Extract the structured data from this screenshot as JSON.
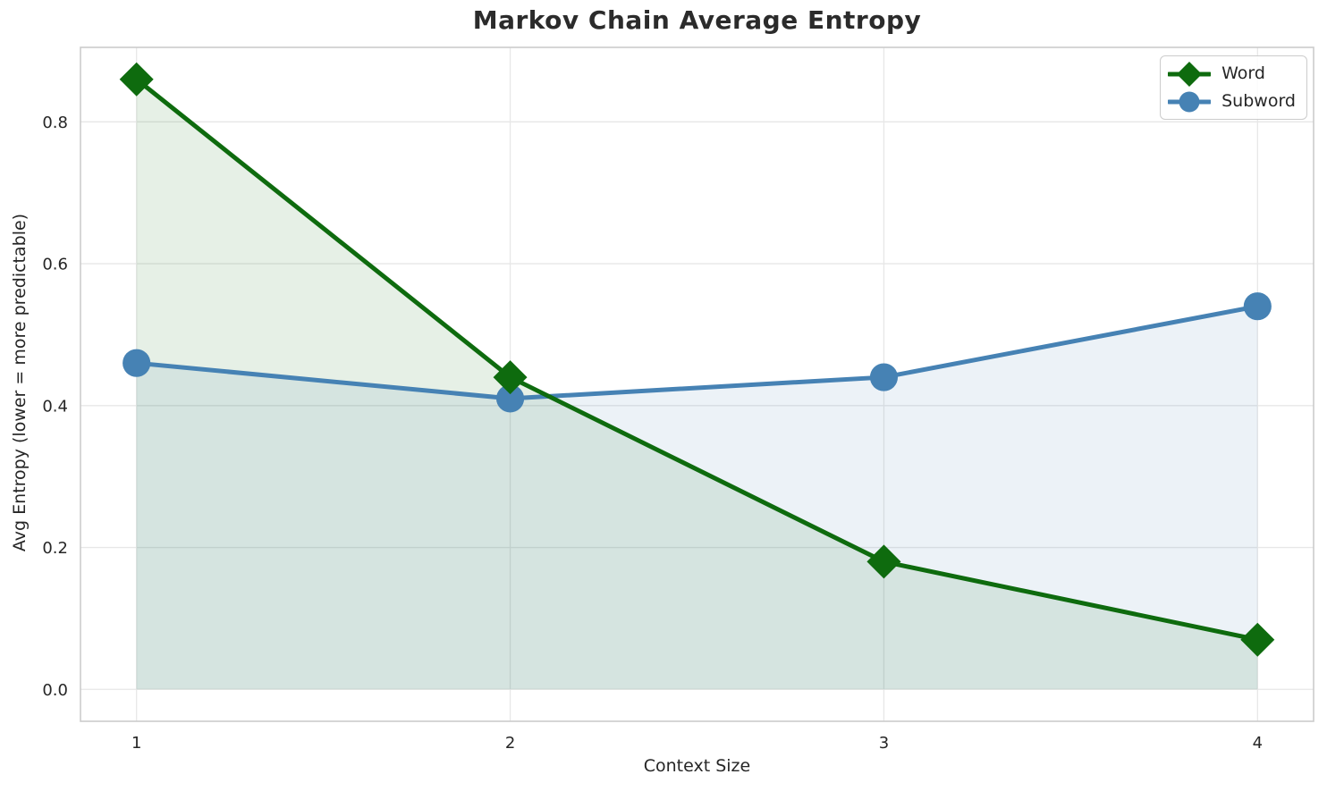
{
  "chart_data": {
    "type": "line",
    "title": "Markov Chain Average Entropy",
    "xlabel": "Context Size",
    "ylabel": "Avg Entropy (lower = more predictable)",
    "x": [
      1,
      2,
      3,
      4
    ],
    "series": [
      {
        "name": "Word",
        "values": [
          0.86,
          0.44,
          0.18,
          0.07
        ],
        "color": "#0e6b0e",
        "marker": "diamond",
        "fill_to_zero": true
      },
      {
        "name": "Subword",
        "values": [
          0.46,
          0.41,
          0.44,
          0.54
        ],
        "color": "#4682b4",
        "marker": "circle",
        "fill_to_zero": true
      }
    ],
    "xlim": [
      0.85,
      4.15
    ],
    "ylim": [
      -0.045,
      0.905
    ],
    "xticks": [
      1,
      2,
      3,
      4
    ],
    "xtick_labels": [
      "1",
      "2",
      "3",
      "4"
    ],
    "yticks": [
      0.0,
      0.2,
      0.4,
      0.6,
      0.8
    ],
    "ytick_labels": [
      "0.0",
      "0.2",
      "0.4",
      "0.6",
      "0.8"
    ],
    "grid": true,
    "legend_position": "top-right",
    "fill_alpha": 0.1,
    "colors": {
      "grid": "#e7e7e7",
      "spine": "#cccccc",
      "text": "#262626",
      "title": "#2b2b2b"
    }
  }
}
